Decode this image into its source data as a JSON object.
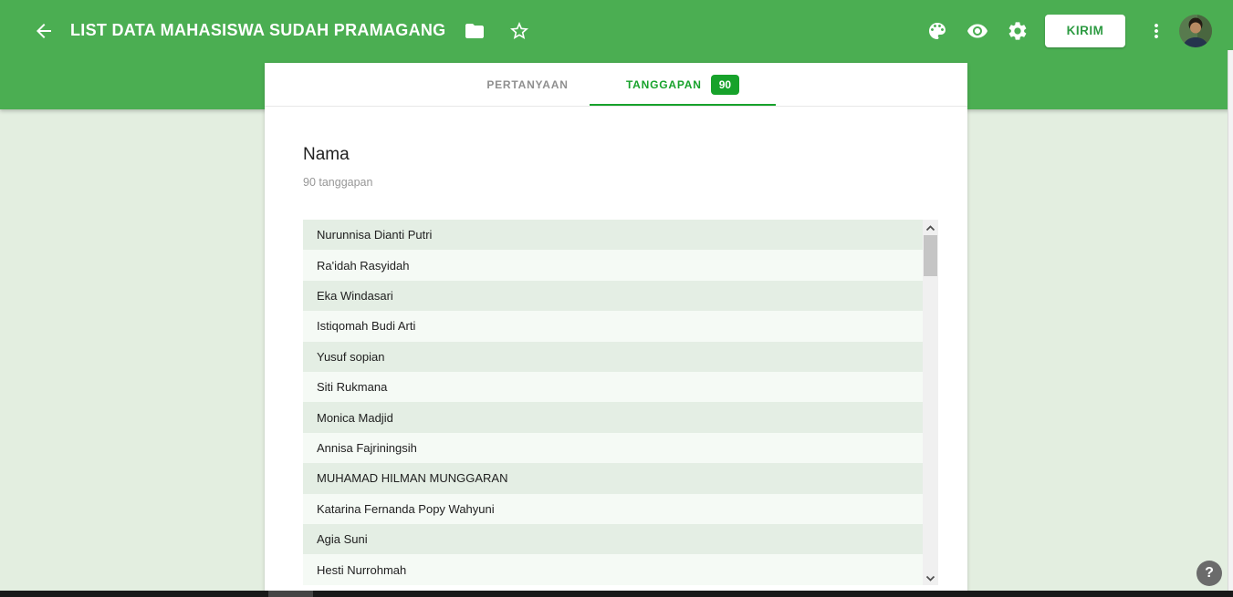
{
  "header": {
    "title": "LIST DATA MAHASISWA SUDAH PRAMAGANG",
    "send_label": "KIRIM"
  },
  "tabs": {
    "questions_label": "PERTANYAAN",
    "responses_label": "TANGGAPAN",
    "responses_count": "90"
  },
  "question": {
    "title": "Nama",
    "responses_summary": "90 tanggapan"
  },
  "responses": {
    "names": [
      "Nurunnisa Dianti Putri",
      "Ra'idah Rasyidah",
      "Eka Windasari",
      "Istiqomah Budi Arti",
      "Yusuf sopian",
      "Siti Rukmana",
      "Monica Madjid",
      "Annisa Fajriningsih",
      "MUHAMAD HILMAN MUNGGARAN",
      "Katarina Fernanda Popy Wahyuni",
      "Agia Suni",
      "Hesti Nurrohmah"
    ]
  },
  "help": {
    "label": "?"
  },
  "icons": [
    "back-arrow-icon",
    "folder-icon",
    "star-icon",
    "palette-icon",
    "eye-icon",
    "gear-icon",
    "more-vert-icon",
    "avatar",
    "help-icon",
    "scroll-up-icon",
    "scroll-down-icon"
  ],
  "colors": {
    "header_green": "#4bae52",
    "accent_green": "#17a22b",
    "kirim_green": "#2e9b43",
    "page_bg": "#e3eee0",
    "row_dark": "#e4eee4",
    "row_light": "#f5faf5"
  }
}
